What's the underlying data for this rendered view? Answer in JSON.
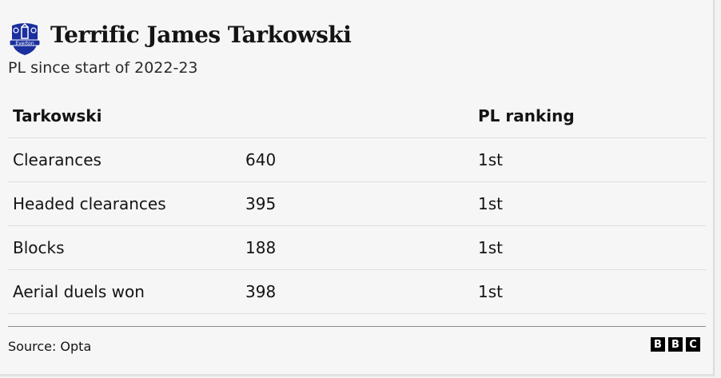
{
  "header": {
    "title": "Terrific James Tarkowski",
    "subtitle": "PL since start of 2022-23",
    "crest_text": "Everton"
  },
  "table": {
    "columns": [
      "Tarkowski",
      "",
      "PL ranking"
    ],
    "rows": [
      {
        "stat": "Clearances",
        "value": "640",
        "rank": "1st"
      },
      {
        "stat": "Headed clearances",
        "value": "395",
        "rank": "1st"
      },
      {
        "stat": "Blocks",
        "value": "188",
        "rank": "1st"
      },
      {
        "stat": "Aerial duels won",
        "value": "398",
        "rank": "1st"
      }
    ]
  },
  "footer": {
    "source": "Source: Opta",
    "logo": [
      "B",
      "B",
      "C"
    ]
  },
  "colors": {
    "crest": "#1b2f9e"
  }
}
